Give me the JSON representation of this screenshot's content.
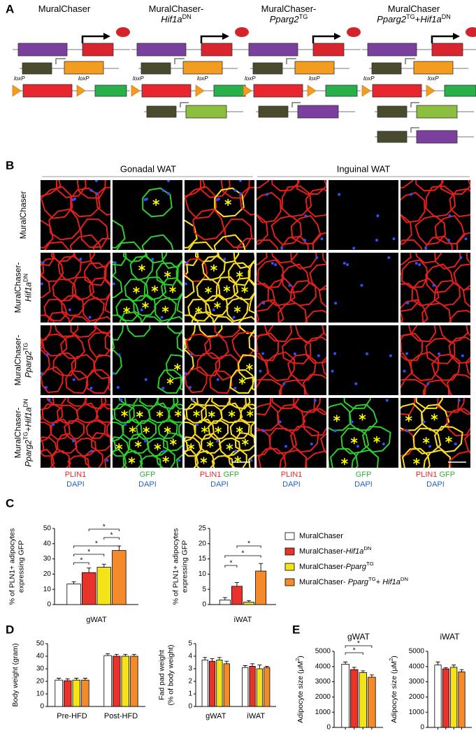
{
  "panel_a": {
    "label": "A",
    "loxp": "loxP",
    "columns": [
      {
        "title": [
          "MuralChaser"
        ]
      },
      {
        "title": [
          "MuralChaser-",
          [
            {
              "text": "Hif1a",
              "italic": true
            },
            {
              "text": "DN",
              "sup": true
            }
          ]
        ]
      },
      {
        "title": [
          "MuralChaser-",
          [
            {
              "text": "Pparg2",
              "italic": true
            },
            {
              "text": "TG",
              "sup": true
            }
          ]
        ]
      },
      {
        "title": [
          "MuralChaser",
          [
            {
              "text": "Pparg2",
              "italic": true
            },
            {
              "text": "TG",
              "sup": true
            },
            {
              "text": "+"
            },
            {
              "text": "Hif1a",
              "italic": true
            },
            {
              "text": "DN",
              "sup": true
            }
          ]
        ]
      }
    ]
  },
  "panel_b": {
    "label": "B",
    "groups": [
      "Gonadal WAT",
      "Inguinal WAT"
    ],
    "rows": [
      [
        "MuralChaser"
      ],
      [
        "MuralChaser-",
        [
          {
            "text": "Hif1a",
            "italic": true
          },
          {
            "text": "DN",
            "sup": true
          }
        ]
      ],
      [
        "MuralChaser-",
        [
          {
            "text": "Pparg2",
            "italic": true
          },
          {
            "text": "TG",
            "sup": true
          }
        ]
      ],
      [
        "MuralChaser-",
        [
          {
            "text": "Pparg2",
            "italic": true
          },
          {
            "text": "TG",
            "sup": true
          },
          {
            "text": "+"
          },
          {
            "text": "Hif1a",
            "italic": true
          },
          {
            "text": "DN",
            "sup": true
          }
        ]
      ]
    ],
    "captions": [
      [
        [
          {
            "text": "PLIN1",
            "color": "#e8262e"
          }
        ],
        [
          {
            "text": "DAPI",
            "color": "#1f5fd6"
          }
        ]
      ],
      [
        [
          {
            "text": "GFP",
            "color": "#2fae3a"
          }
        ],
        [
          {
            "text": "DAPI",
            "color": "#1f5fd6"
          }
        ]
      ],
      [
        [
          {
            "text": "PLIN1 ",
            "color": "#e8262e"
          },
          {
            "text": "GFP",
            "color": "#2fae3a"
          }
        ],
        [
          {
            "text": "DAPI",
            "color": "#1f5fd6"
          }
        ]
      ]
    ]
  },
  "panel_c": {
    "label": "C",
    "legend": [
      {
        "color": "#ffffff",
        "label": "MuralChaser"
      },
      {
        "color": "#e8332a",
        "label": [
          {
            "text": "MuralChaser-"
          },
          {
            "text": "Hif1a",
            "italic": true
          },
          {
            "text": "DN",
            "sup": true
          }
        ]
      },
      {
        "color": "#f5e31a",
        "label": [
          {
            "text": "MuralChaser-"
          },
          {
            "text": "Pparg",
            "italic": true
          },
          {
            "text": "TG",
            "sup": true
          }
        ]
      },
      {
        "color": "#f58a2a",
        "label": [
          {
            "text": "MuralChaser- "
          },
          {
            "text": "Pparg",
            "italic": true
          },
          {
            "text": "TG",
            "sup": true
          },
          {
            "text": "+ "
          },
          {
            "text": "Hif1a",
            "italic": true
          },
          {
            "text": "DN",
            "sup": true
          }
        ]
      }
    ]
  },
  "panel_d": {
    "label": "D"
  },
  "panel_e": {
    "label": "E"
  },
  "chart_data": [
    {
      "type": "bar",
      "ylabel": [
        "% of PLN1+ adipocytes",
        "expressing GFP"
      ],
      "categories": [
        "gWAT"
      ],
      "ylim": [
        0,
        50
      ],
      "yticks": [
        0,
        10,
        20,
        30,
        40,
        50
      ],
      "series": [
        {
          "color": "#ffffff",
          "values": [
            13.5
          ],
          "errors": [
            1.5
          ]
        },
        {
          "color": "#e8332a",
          "values": [
            21
          ],
          "errors": [
            3
          ]
        },
        {
          "color": "#f5e31a",
          "values": [
            24.5
          ],
          "errors": [
            2
          ]
        },
        {
          "color": "#f58a2a",
          "values": [
            35.5
          ],
          "errors": [
            3
          ]
        }
      ],
      "brackets": [
        {
          "from": 1,
          "to": 3,
          "label": "*"
        },
        {
          "from": 2,
          "to": 3,
          "label": "*"
        },
        {
          "from": 0,
          "to": 3,
          "label": "*"
        },
        {
          "from": 0,
          "to": 2,
          "label": "*"
        },
        {
          "from": 0,
          "to": 1,
          "label": "*"
        }
      ]
    },
    {
      "type": "bar",
      "ylabel": [
        "% of PLN1+ adipocytes",
        "expressing GFP"
      ],
      "categories": [
        "iWAT"
      ],
      "ylim": [
        0,
        25
      ],
      "yticks": [
        0,
        5,
        10,
        15,
        20,
        25
      ],
      "series": [
        {
          "color": "#ffffff",
          "values": [
            1.5
          ],
          "errors": [
            0.8
          ]
        },
        {
          "color": "#e8332a",
          "values": [
            6
          ],
          "errors": [
            1.2
          ]
        },
        {
          "color": "#f5e31a",
          "values": [
            0.8
          ],
          "errors": [
            0.5
          ]
        },
        {
          "color": "#f58a2a",
          "values": [
            11
          ],
          "errors": [
            2.5
          ]
        }
      ],
      "brackets": [
        {
          "from": 1,
          "to": 3,
          "label": "*"
        },
        {
          "from": 0,
          "to": 3,
          "label": "*"
        },
        {
          "from": 0,
          "to": 1,
          "label": "*"
        }
      ]
    },
    {
      "type": "bar",
      "ylabel": [
        "Body weight (gram)"
      ],
      "categories": [
        "Pre-HFD",
        "Post-HFD"
      ],
      "ylim": [
        0,
        50
      ],
      "yticks": [
        0,
        10,
        20,
        30,
        40,
        50
      ],
      "series": [
        {
          "color": "#ffffff",
          "values": [
            21,
            40.5
          ],
          "errors": [
            1.5,
            1.5
          ]
        },
        {
          "color": "#e8332a",
          "values": [
            20.5,
            40
          ],
          "errors": [
            1.5,
            1.5
          ]
        },
        {
          "color": "#f5e31a",
          "values": [
            21,
            40
          ],
          "errors": [
            1.5,
            1.5
          ]
        },
        {
          "color": "#f58a2a",
          "values": [
            21,
            40
          ],
          "errors": [
            1.5,
            1.5
          ]
        }
      ]
    },
    {
      "type": "bar",
      "ylabel": [
        "Fad pad weight",
        "(% of body weight)"
      ],
      "categories": [
        "gWAT",
        "iWAT"
      ],
      "ylim": [
        0,
        5
      ],
      "yticks": [
        0,
        1,
        2,
        3,
        4,
        5
      ],
      "series": [
        {
          "color": "#ffffff",
          "values": [
            3.7,
            3.1
          ],
          "errors": [
            0.2,
            0.15
          ]
        },
        {
          "color": "#e8332a",
          "values": [
            3.6,
            3.2
          ],
          "errors": [
            0.2,
            0.2
          ]
        },
        {
          "color": "#f5e31a",
          "values": [
            3.7,
            3.0
          ],
          "errors": [
            0.2,
            0.3
          ]
        },
        {
          "color": "#f58a2a",
          "values": [
            3.4,
            3.1
          ],
          "errors": [
            0.2,
            0.1
          ]
        }
      ]
    },
    {
      "type": "bar",
      "title": "gWAT",
      "ylabel": [
        [
          {
            "text": "Adipocyte size (μM"
          },
          {
            "text": "2",
            "sup": true
          },
          {
            "text": ")"
          }
        ]
      ],
      "ylim": [
        0,
        5000
      ],
      "yticks": [
        0,
        1000,
        2000,
        3000,
        4000,
        5000
      ],
      "series": [
        {
          "color": "#ffffff",
          "values": [
            4150
          ],
          "errors": [
            150
          ]
        },
        {
          "color": "#e8332a",
          "values": [
            3800
          ],
          "errors": [
            150
          ]
        },
        {
          "color": "#f5e31a",
          "values": [
            3600
          ],
          "errors": [
            120
          ]
        },
        {
          "color": "#f58a2a",
          "values": [
            3300
          ],
          "errors": [
            150
          ]
        }
      ],
      "brackets": [
        {
          "from": 0,
          "to": 3,
          "label": "*"
        },
        {
          "from": 0,
          "to": 2,
          "label": "*"
        }
      ]
    },
    {
      "type": "bar",
      "title": "iWAT",
      "ylabel": [
        [
          {
            "text": "Adipocyte size (μM"
          },
          {
            "text": "2",
            "sup": true
          },
          {
            "text": ")"
          }
        ]
      ],
      "ylim": [
        0,
        5000
      ],
      "yticks": [
        0,
        1000,
        2000,
        3000,
        4000,
        5000
      ],
      "series": [
        {
          "color": "#ffffff",
          "values": [
            4100
          ],
          "errors": [
            200
          ]
        },
        {
          "color": "#e8332a",
          "values": [
            3850
          ],
          "errors": [
            80
          ]
        },
        {
          "color": "#f5e31a",
          "values": [
            3950
          ],
          "errors": [
            150
          ]
        },
        {
          "color": "#f58a2a",
          "values": [
            3650
          ],
          "errors": [
            150
          ]
        }
      ]
    }
  ]
}
